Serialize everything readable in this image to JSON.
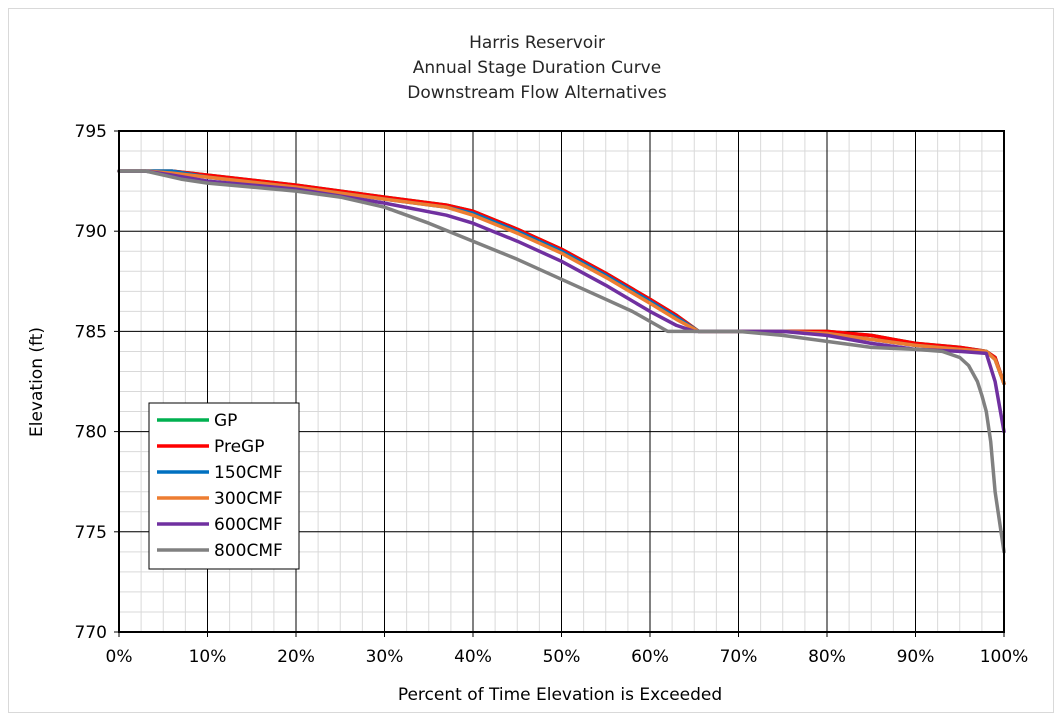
{
  "chart_data": {
    "type": "line",
    "title": [
      "Harris Reservoir",
      "Annual Stage Duration Curve",
      "Downstream Flow Alternatives"
    ],
    "xlabel": "Percent of Time Elevation is Exceeded",
    "ylabel": "Elevation (ft)",
    "xlim": [
      0,
      100
    ],
    "ylim": [
      770,
      795
    ],
    "x_ticks": [
      0,
      10,
      20,
      30,
      40,
      50,
      60,
      70,
      80,
      90,
      100
    ],
    "x_tick_labels": [
      "0%",
      "10%",
      "20%",
      "30%",
      "40%",
      "50%",
      "60%",
      "70%",
      "80%",
      "90%",
      "100%"
    ],
    "y_ticks": [
      770,
      775,
      780,
      785,
      790,
      795
    ],
    "y_tick_labels": [
      "770",
      "775",
      "780",
      "785",
      "790",
      "795"
    ],
    "grid": "major and minor",
    "legend_position": "bottom-left",
    "series": [
      {
        "name": "GP",
        "color": "#00b050",
        "x": [
          0,
          3,
          6,
          10,
          20,
          30,
          37,
          40,
          45,
          50,
          55,
          60,
          63,
          65.5,
          70,
          75,
          80,
          85,
          90,
          95,
          98,
          99,
          100
        ],
        "y": [
          793,
          793,
          793,
          792.8,
          792.3,
          791.7,
          791.3,
          791.0,
          790.1,
          789.1,
          787.9,
          786.6,
          785.8,
          785.0,
          785.0,
          785.0,
          785.0,
          784.8,
          784.4,
          784.2,
          784.0,
          783.7,
          782.4
        ]
      },
      {
        "name": "PreGP",
        "color": "#ff0000",
        "x": [
          0,
          3,
          6,
          10,
          20,
          30,
          37,
          40,
          45,
          50,
          55,
          60,
          63,
          65.5,
          70,
          75,
          80,
          85,
          90,
          95,
          98,
          99,
          100
        ],
        "y": [
          793,
          793,
          793,
          792.8,
          792.3,
          791.7,
          791.3,
          791.0,
          790.1,
          789.1,
          787.9,
          786.6,
          785.8,
          785.0,
          785.0,
          785.0,
          785.0,
          784.8,
          784.4,
          784.2,
          784.0,
          783.7,
          782.4
        ]
      },
      {
        "name": "150CMF",
        "color": "#0070c0",
        "x": [
          0,
          3,
          6,
          10,
          20,
          30,
          37,
          40,
          45,
          50,
          55,
          60,
          63,
          65.5,
          70,
          75,
          80,
          85,
          90,
          95,
          98,
          99,
          100
        ],
        "y": [
          793,
          793,
          793,
          792.7,
          792.2,
          791.6,
          791.2,
          790.9,
          790.0,
          789.0,
          787.8,
          786.5,
          785.7,
          785.0,
          785.0,
          785.0,
          784.9,
          784.6,
          784.3,
          784.1,
          784.0,
          783.6,
          782.4
        ]
      },
      {
        "name": "300CMF",
        "color": "#ed7d31",
        "x": [
          0,
          3,
          6,
          10,
          20,
          30,
          37,
          40,
          45,
          50,
          55,
          60,
          63,
          65.5,
          70,
          75,
          80,
          85,
          90,
          95,
          98,
          99,
          100
        ],
        "y": [
          793,
          793,
          792.9,
          792.7,
          792.2,
          791.6,
          791.2,
          790.8,
          789.9,
          788.9,
          787.7,
          786.4,
          785.6,
          785.0,
          785.0,
          785.0,
          784.9,
          784.6,
          784.3,
          784.1,
          784.0,
          783.6,
          782.4
        ]
      },
      {
        "name": "600CMF",
        "color": "#7030a0",
        "x": [
          0,
          3,
          6,
          10,
          20,
          30,
          37,
          40,
          45,
          50,
          55,
          60,
          63,
          65,
          70,
          75,
          80,
          85,
          90,
          95,
          98,
          99,
          100
        ],
        "y": [
          793,
          793,
          792.8,
          792.5,
          792.1,
          791.4,
          790.8,
          790.4,
          789.5,
          788.5,
          787.3,
          786.0,
          785.3,
          785.0,
          785.0,
          785.0,
          784.8,
          784.4,
          784.1,
          784.0,
          783.9,
          782.5,
          780.0
        ]
      },
      {
        "name": "800CMF",
        "color": "#808080",
        "x": [
          0,
          3,
          4,
          7,
          10,
          20,
          25,
          30,
          35,
          40,
          45,
          50,
          55,
          58,
          62,
          70,
          75,
          80,
          85,
          90,
          93,
          95,
          96,
          97,
          97.5,
          98,
          98.5,
          99,
          100
        ],
        "y": [
          793,
          793,
          792.9,
          792.6,
          792.4,
          792.0,
          791.7,
          791.2,
          790.4,
          789.5,
          788.6,
          787.6,
          786.6,
          786.0,
          785.0,
          785.0,
          784.8,
          784.5,
          784.2,
          784.1,
          784.0,
          783.7,
          783.3,
          782.5,
          781.8,
          781.0,
          779.5,
          777.0,
          774.0
        ]
      }
    ]
  }
}
